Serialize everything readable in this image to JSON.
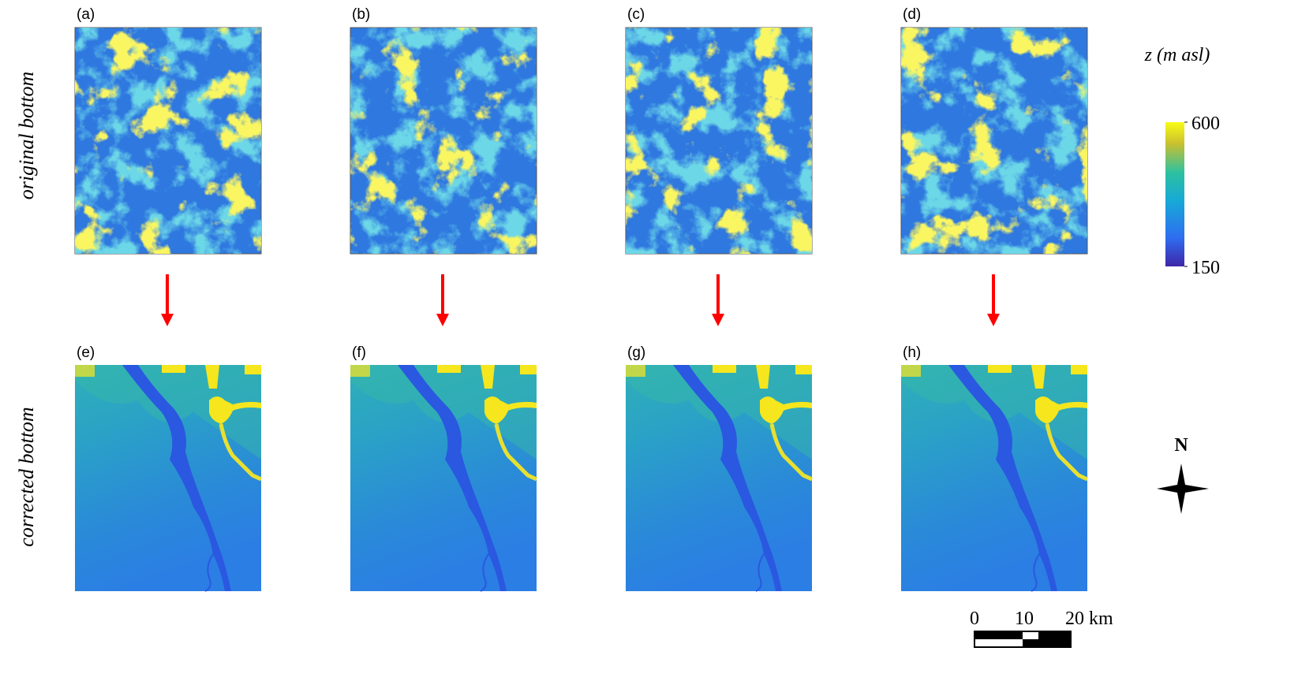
{
  "panels": [
    "(a)",
    "(b)",
    "(c)",
    "(d)",
    "(e)",
    "(f)",
    "(g)",
    "(h)"
  ],
  "row_labels": [
    "original bottom",
    "corrected bottom"
  ],
  "colorbar": {
    "title": "z (m asl)",
    "lim": [
      150,
      600
    ],
    "ticks": [
      150,
      600
    ]
  },
  "north": "N",
  "scale_bar": {
    "labels": [
      "0",
      "10",
      "20 km"
    ]
  }
}
